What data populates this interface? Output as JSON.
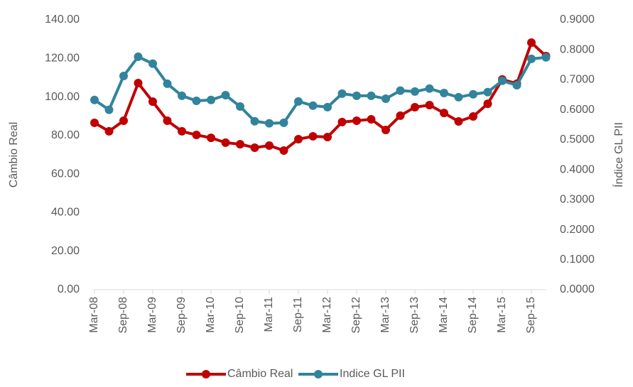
{
  "chart_data": {
    "type": "line",
    "y_label": "Câmbio Real",
    "y2_label": "Índice GL PII",
    "categories": [
      "Mar-08",
      null,
      "Sep-08",
      null,
      "Mar-09",
      null,
      "Sep-09",
      null,
      "Mar-10",
      null,
      "Sep-10",
      null,
      "Mar-11",
      null,
      "Sep-11",
      null,
      "Mar-12",
      null,
      "Sep-12",
      null,
      "Mar-13",
      null,
      "Sep-13",
      null,
      "Mar-14",
      null,
      "Sep-14",
      null,
      "Mar-15",
      null,
      "Sep-15",
      null
    ],
    "ylim": [
      0,
      140
    ],
    "yticks": [
      {
        "value": 0,
        "label": "0.00"
      },
      {
        "value": 20,
        "label": "20.00"
      },
      {
        "value": 40,
        "label": "40.00"
      },
      {
        "value": 60,
        "label": "60.00"
      },
      {
        "value": 80,
        "label": "80.00"
      },
      {
        "value": 100,
        "label": "100.00"
      },
      {
        "value": 120,
        "label": "120.00"
      },
      {
        "value": 140,
        "label": "140.00"
      }
    ],
    "y2lim": [
      0,
      0.9
    ],
    "y2ticks": [
      {
        "value": 0,
        "label": "0.0000"
      },
      {
        "value": 0.1,
        "label": "0.1000"
      },
      {
        "value": 0.2,
        "label": "0.2000"
      },
      {
        "value": 0.3,
        "label": "0.3000"
      },
      {
        "value": 0.4,
        "label": "0.4000"
      },
      {
        "value": 0.5,
        "label": "0.5000"
      },
      {
        "value": 0.6,
        "label": "0.6000"
      },
      {
        "value": 0.7,
        "label": "0.7000"
      },
      {
        "value": 0.8,
        "label": "0.8000"
      },
      {
        "value": 0.9,
        "label": "0.9000"
      }
    ],
    "series": [
      {
        "name": "Câmbio Real",
        "color": "#c00000",
        "values": [
          86.6,
          82.2,
          87.7,
          107.2,
          97.6,
          87.7,
          82.2,
          80.3,
          78.8,
          76.3,
          75.5,
          73.7,
          74.8,
          72.2,
          78.1,
          79.6,
          79.2,
          87.0,
          87.7,
          88.4,
          82.9,
          90.3,
          94.7,
          95.8,
          91.7,
          87.3,
          89.9,
          96.5,
          109.1,
          106.9,
          128.2,
          121.2
        ]
      },
      {
        "name": "Indice GL PII",
        "color": "#31849b",
        "axis": "y2",
        "values": [
          0.633,
          0.6,
          0.713,
          0.777,
          0.754,
          0.687,
          0.647,
          0.63,
          0.633,
          0.649,
          0.611,
          0.562,
          0.555,
          0.557,
          0.628,
          0.614,
          0.609,
          0.654,
          0.647,
          0.647,
          0.637,
          0.664,
          0.661,
          0.671,
          0.656,
          0.642,
          0.652,
          0.659,
          0.697,
          0.682,
          0.77,
          0.775
        ]
      }
    ],
    "legend": "bottom"
  }
}
